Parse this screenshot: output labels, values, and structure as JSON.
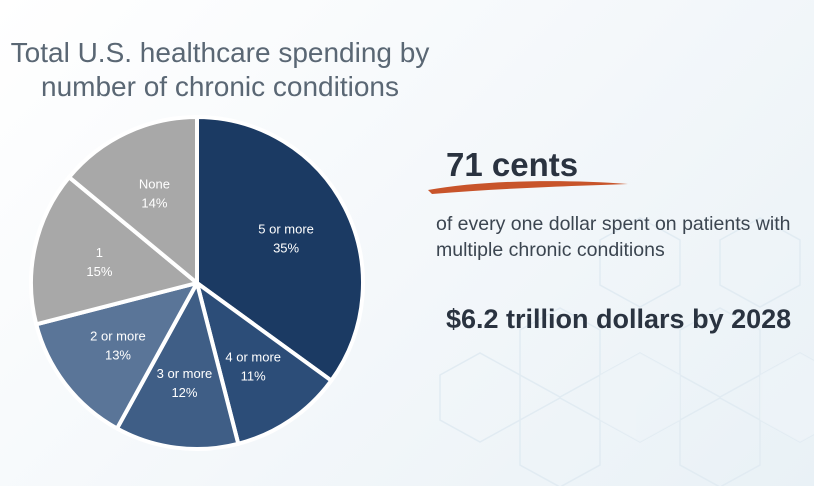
{
  "title": "Total U.S. healthcare spending by number of chronic conditions",
  "highlight": {
    "value": "71 cents",
    "description": "of every one dollar spent on patients with multiple chronic conditions",
    "projection": "$6.2 trillion dollars by 2028"
  },
  "colors": {
    "dark_navy": "#1b3a63",
    "navy": "#2c4d78",
    "steel_blue": "#3f5e86",
    "slate_blue": "#5a7598",
    "gray": "#a8a8a8",
    "accent_brush": "#c8542a"
  },
  "chart_data": {
    "type": "pie",
    "title": "Total U.S. healthcare spending by number of chronic conditions",
    "slices": [
      {
        "label": "5 or more",
        "value": 35,
        "value_label": "35%",
        "color": "#1b3a63"
      },
      {
        "label": "4 or more",
        "value": 11,
        "value_label": "11%",
        "color": "#2c4d78"
      },
      {
        "label": "3 or more",
        "value": 12,
        "value_label": "12%",
        "color": "#3f5e86"
      },
      {
        "label": "2 or more",
        "value": 13,
        "value_label": "13%",
        "color": "#5a7598"
      },
      {
        "label": "1",
        "value": 15,
        "value_label": "15%",
        "color": "#a8a8a8"
      },
      {
        "label": "None",
        "value": 14,
        "value_label": "14%",
        "color": "#a8a8a8"
      }
    ],
    "start_angle": "12 o'clock",
    "direction": "clockwise",
    "legend": "none (labels on slices)"
  }
}
